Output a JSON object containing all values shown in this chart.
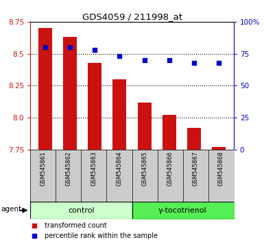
{
  "title": "GDS4059 / 211998_at",
  "samples": [
    "GSM545861",
    "GSM545862",
    "GSM545863",
    "GSM545864",
    "GSM545865",
    "GSM545866",
    "GSM545867",
    "GSM545868"
  ],
  "bar_values": [
    8.7,
    8.63,
    8.43,
    8.3,
    8.12,
    8.02,
    7.92,
    7.77
  ],
  "percentile_values": [
    80,
    80,
    78,
    73,
    70,
    70,
    68,
    68
  ],
  "bar_baseline": 7.75,
  "ylim_left": [
    7.75,
    8.75
  ],
  "ylim_right": [
    0,
    100
  ],
  "yticks_left": [
    7.75,
    8.0,
    8.25,
    8.5,
    8.75
  ],
  "yticks_right": [
    0,
    25,
    50,
    75,
    100
  ],
  "ytick_labels_right": [
    "0",
    "25",
    "50",
    "75",
    "100%"
  ],
  "bar_color": "#CC1111",
  "percentile_color": "#0000CC",
  "control_group_count": 4,
  "treatment_group_count": 4,
  "control_label": "control",
  "treatment_label": "γ-tocotrienol",
  "agent_label": "agent",
  "legend_bar_label": "transformed count",
  "legend_pct_label": "percentile rank within the sample",
  "control_bg_color": "#ccffcc",
  "treatment_bg_color": "#55ee55",
  "xlabel_bg_color": "#cccccc",
  "left_axis_color": "#CC1111",
  "right_axis_color": "#0000CC"
}
